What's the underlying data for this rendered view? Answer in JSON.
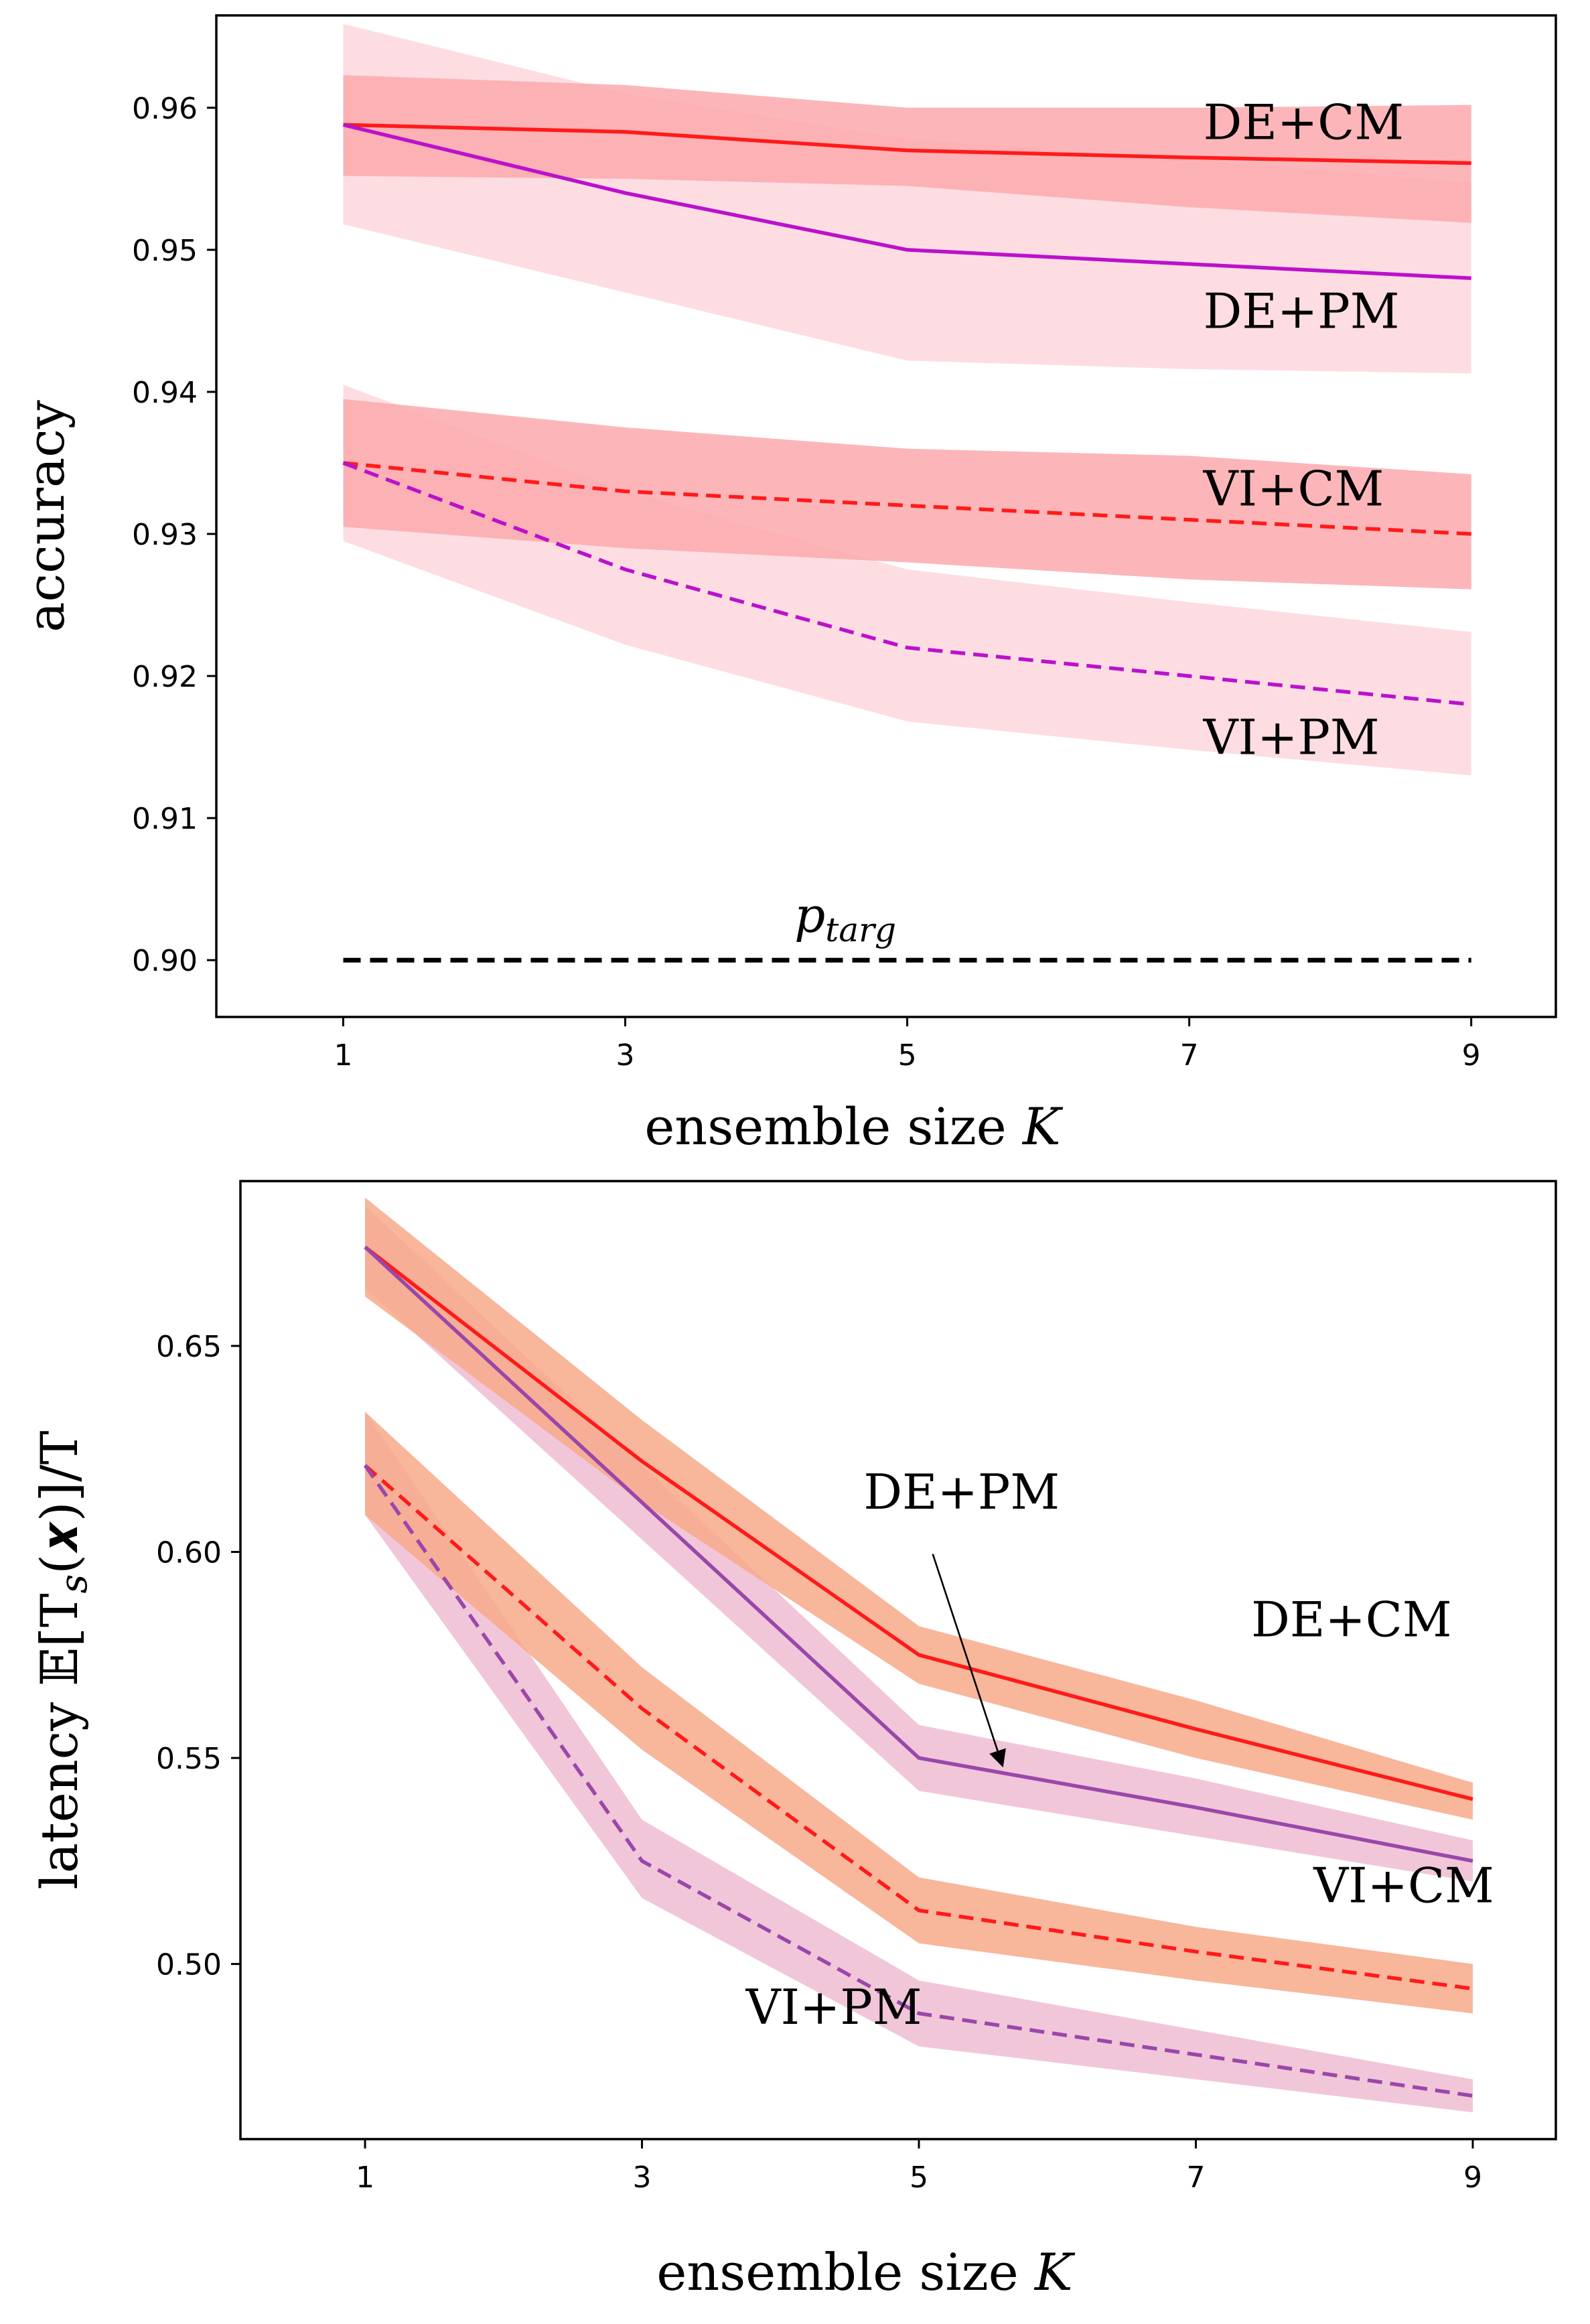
{
  "colors": {
    "cm": "#ff1a1a",
    "pm_top": "#bb11cc",
    "pm_bottom": "#9a47aa",
    "band_top_cm": "#fba9ad",
    "band_top_pm": "#fddde2",
    "band_bottom_cm": "#f7a98a",
    "band_bottom_pm": "#efbcd2",
    "target": "#000000"
  },
  "chart_data": [
    {
      "type": "line",
      "title": "",
      "xlabel": "ensemble size",
      "xlabel_var": "K",
      "ylabel": "accuracy",
      "xlim": [
        0.1,
        9.6
      ],
      "ylim": [
        0.896,
        0.9665
      ],
      "xticks": [
        1,
        3,
        5,
        7,
        9
      ],
      "yticks": [
        0.9,
        0.91,
        0.92,
        0.93,
        0.94,
        0.95,
        0.96
      ],
      "yticklabels": [
        "0.90",
        "0.91",
        "0.92",
        "0.93",
        "0.94",
        "0.95",
        "0.96"
      ],
      "series": [
        {
          "name": "DE+CM",
          "color_key": "cm",
          "band_key": "band_top_cm",
          "dashed": false,
          "x": [
            1,
            3,
            5,
            7,
            9
          ],
          "values": [
            0.9588,
            0.9583,
            0.957,
            0.9565,
            0.9561
          ],
          "lower": [
            0.9552,
            0.955,
            0.9545,
            0.953,
            0.9519
          ],
          "upper": [
            0.9623,
            0.9616,
            0.96,
            0.96,
            0.9602
          ],
          "label": {
            "x": 7.1,
            "y": 0.9578
          }
        },
        {
          "name": "DE+PM",
          "color_key": "pm_top",
          "band_key": "band_top_pm",
          "dashed": false,
          "x": [
            1,
            3,
            5,
            7,
            9
          ],
          "values": [
            0.9588,
            0.954,
            0.95,
            0.949,
            0.948
          ],
          "lower": [
            0.9518,
            0.947,
            0.9422,
            0.9416,
            0.9413
          ],
          "upper": [
            0.9659,
            0.961,
            0.9578,
            0.9564,
            0.9547
          ],
          "label": {
            "x": 7.1,
            "y": 0.9445
          }
        },
        {
          "name": "VI+CM",
          "color_key": "cm",
          "band_key": "band_top_cm",
          "dashed": true,
          "x": [
            1,
            3,
            5,
            7,
            9
          ],
          "values": [
            0.935,
            0.933,
            0.932,
            0.931,
            0.93
          ],
          "lower": [
            0.9305,
            0.929,
            0.928,
            0.9268,
            0.9261
          ],
          "upper": [
            0.9395,
            0.9375,
            0.936,
            0.9355,
            0.9342
          ],
          "label": {
            "x": 7.1,
            "y": 0.932
          }
        },
        {
          "name": "VI+PM",
          "color_key": "pm_top",
          "band_key": "band_top_pm",
          "dashed": true,
          "x": [
            1,
            3,
            5,
            7,
            9
          ],
          "values": [
            0.935,
            0.9275,
            0.922,
            0.92,
            0.918
          ],
          "lower": [
            0.9295,
            0.9222,
            0.9168,
            0.9148,
            0.913
          ],
          "upper": [
            0.9405,
            0.933,
            0.9275,
            0.9252,
            0.9231
          ],
          "label": {
            "x": 7.1,
            "y": 0.9145
          }
        },
        {
          "name": "p",
          "subscript": "targ",
          "color_key": "target",
          "dashed": true,
          "is_target": true,
          "x": [
            1,
            9
          ],
          "values": [
            0.9,
            0.9
          ],
          "label": {
            "x": 4.2,
            "y": 0.902
          }
        }
      ]
    },
    {
      "type": "line",
      "title": "",
      "xlabel": "ensemble size",
      "xlabel_var": "K",
      "ylabel": "latency 𝔼[T",
      "ylabel_sub": "s",
      "ylabel_tail": "(𝒙)]/T",
      "xlim": [
        0.1,
        9.6
      ],
      "ylim": [
        0.4575,
        0.69
      ],
      "xticks": [
        1,
        3,
        5,
        7,
        9
      ],
      "yticks": [
        0.5,
        0.55,
        0.6,
        0.65
      ],
      "yticklabels": [
        "0.50",
        "0.55",
        "0.60",
        "0.65"
      ],
      "series": [
        {
          "name": "DE+CM",
          "color_key": "cm",
          "band_key": "band_bottom_cm",
          "dashed": false,
          "x": [
            1,
            3,
            5,
            7,
            9
          ],
          "values": [
            0.674,
            0.622,
            0.575,
            0.557,
            0.54
          ],
          "lower": [
            0.662,
            0.612,
            0.568,
            0.55,
            0.535
          ],
          "upper": [
            0.686,
            0.632,
            0.582,
            0.564,
            0.544
          ],
          "label": {
            "x": 7.4,
            "y": 0.5795
          }
        },
        {
          "name": "DE+PM",
          "color_key": "pm_bottom",
          "band_key": "band_bottom_pm",
          "dashed": false,
          "x": [
            1,
            3,
            5,
            7,
            9
          ],
          "values": [
            0.674,
            0.612,
            0.55,
            0.538,
            0.525
          ],
          "lower": [
            0.664,
            0.603,
            0.542,
            0.531,
            0.52
          ],
          "upper": [
            0.684,
            0.621,
            0.558,
            0.545,
            0.53
          ],
          "label": {
            "x": 4.6,
            "y": 0.6105
          },
          "arrow": {
            "from_x": 5.1,
            "from_y": 0.5995,
            "to_x": 5.6,
            "to_y": 0.5485
          }
        },
        {
          "name": "VI+CM",
          "color_key": "cm",
          "band_key": "band_bottom_cm",
          "dashed": true,
          "x": [
            1,
            3,
            5,
            7,
            9
          ],
          "values": [
            0.621,
            0.562,
            0.513,
            0.503,
            0.494
          ],
          "lower": [
            0.609,
            0.552,
            0.505,
            0.496,
            0.488
          ],
          "upper": [
            0.634,
            0.572,
            0.521,
            0.509,
            0.5
          ],
          "label": {
            "x": 7.85,
            "y": 0.515
          }
        },
        {
          "name": "VI+PM",
          "color_key": "pm_bottom",
          "band_key": "band_bottom_pm",
          "dashed": true,
          "x": [
            1,
            3,
            5,
            7,
            9
          ],
          "values": [
            0.621,
            0.525,
            0.488,
            0.478,
            0.468
          ],
          "lower": [
            0.609,
            0.516,
            0.48,
            0.472,
            0.464
          ],
          "upper": [
            0.634,
            0.535,
            0.496,
            0.484,
            0.472
          ],
          "label": {
            "x": 3.75,
            "y": 0.4855
          }
        }
      ]
    }
  ]
}
